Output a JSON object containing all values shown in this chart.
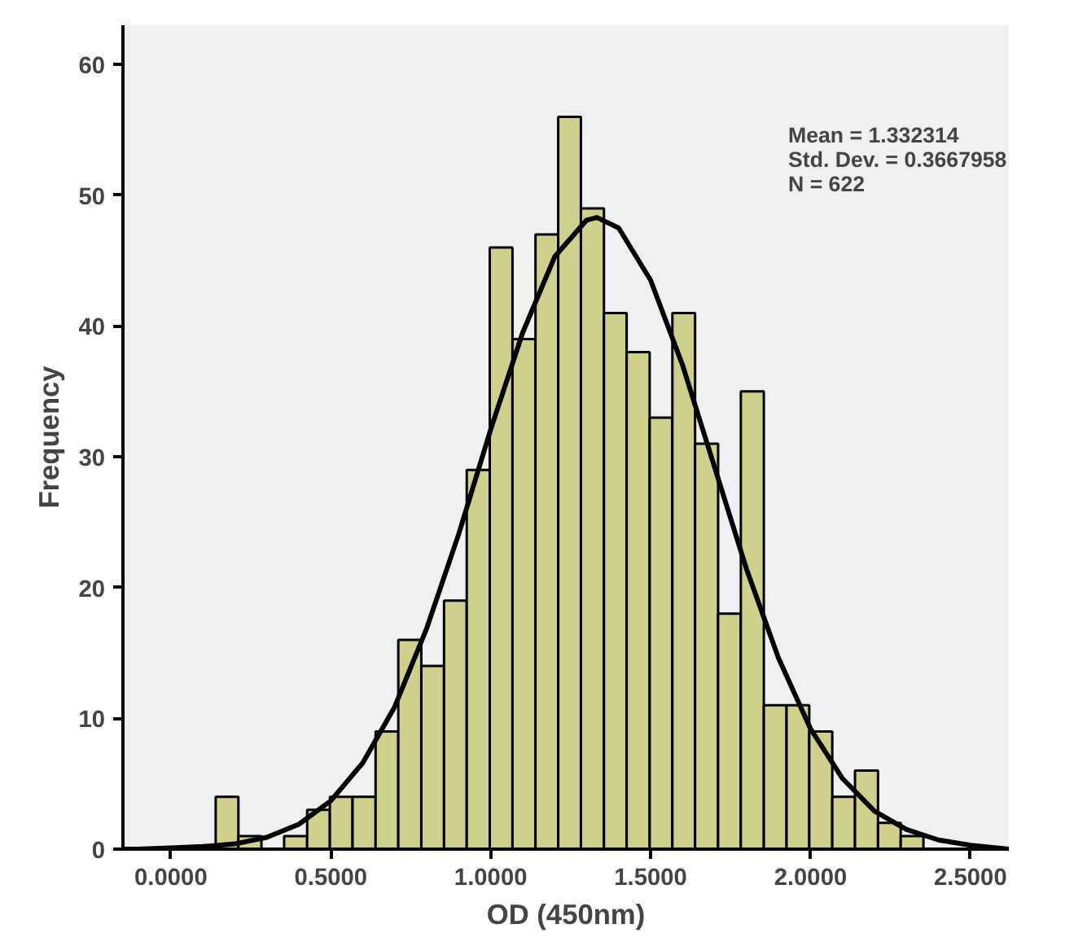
{
  "chart_data": {
    "type": "histogram",
    "xlabel": "OD (450nm)",
    "ylabel": "Frequency",
    "annotations": [
      "Mean = 1.332314",
      "Std. Dev. = 0.3667958",
      "N = 622"
    ],
    "xlim": [
      -0.15,
      2.62
    ],
    "ylim": [
      0,
      63
    ],
    "xticks": [
      {
        "value": 0,
        "label": "0.0000"
      },
      {
        "value": 0.5,
        "label": "0.5000"
      },
      {
        "value": 1,
        "label": "1.0000"
      },
      {
        "value": 1.5,
        "label": "1.5000"
      },
      {
        "value": 2,
        "label": "2.0000"
      },
      {
        "value": 2.5,
        "label": "2.5000"
      }
    ],
    "yticks": [
      0,
      10,
      20,
      30,
      40,
      50,
      60
    ],
    "grid": false,
    "series": [
      {
        "color": "#d0d08e",
        "bins": [
          0.14,
          0.211,
          0.283,
          0.354,
          0.426,
          0.497,
          0.568,
          0.64,
          0.711,
          0.783,
          0.854,
          0.925,
          0.997,
          1.068,
          1.14,
          1.211,
          1.282,
          1.354,
          1.425,
          1.497,
          1.568,
          1.639,
          1.711,
          1.782,
          1.854,
          1.925,
          1.996,
          2.068,
          2.139,
          2.211,
          2.282,
          2.353
        ],
        "values": [
          4,
          1,
          0,
          1,
          3,
          4,
          4,
          9,
          16,
          14,
          19,
          29,
          46,
          39,
          47,
          56,
          49,
          41,
          38,
          33,
          41,
          31,
          18,
          35,
          11,
          11,
          9,
          4,
          6,
          2,
          1
        ]
      },
      {
        "type": "line",
        "color": "#000000",
        "x": [
          -0.15,
          -0.1,
          0,
          0.1,
          0.2,
          0.3,
          0.4,
          0.5,
          0.6,
          0.7,
          0.8,
          0.9,
          1.0,
          1.1,
          1.2,
          1.3,
          1.332,
          1.4,
          1.5,
          1.6,
          1.7,
          1.8,
          1.9,
          2.0,
          2.1,
          2.2,
          2.3,
          2.4,
          2.5,
          2.62
        ],
        "values": [
          0,
          0,
          0.1,
          0.2,
          0.4,
          0.9,
          1.9,
          3.7,
          6.6,
          10.9,
          16.9,
          24.1,
          32.1,
          39.5,
          45.3,
          48.1,
          48.3,
          47.5,
          43.5,
          37.0,
          29.2,
          21.4,
          14.6,
          9.2,
          5.4,
          2.9,
          1.5,
          0.7,
          0.3,
          0
        ]
      }
    ]
  }
}
